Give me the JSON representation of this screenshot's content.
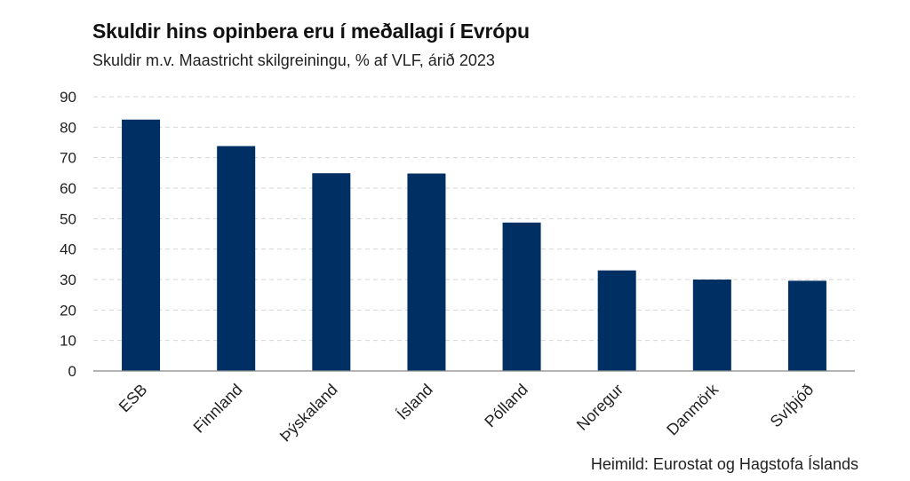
{
  "header": {
    "title": "Skuldir hins opinbera eru í meðallagi í Evrópu",
    "subtitle": "Skuldir m.v. Maastricht skilgreiningu, % af VLF, árið 2023"
  },
  "footer": {
    "source": "Heimild: Eurostat og Hagstofa Íslands"
  },
  "colors": {
    "bar": "#003063",
    "grid": "#d6d6d6",
    "axis": "#888888",
    "text": "#222222"
  },
  "chart_data": {
    "type": "bar",
    "categories": [
      "ESB",
      "Finnland",
      "Þýskaland",
      "Ísland",
      "Pólland",
      "Noregur",
      "Danmörk",
      "Svíþjóð"
    ],
    "values": [
      82.5,
      73.8,
      64.9,
      64.8,
      48.7,
      33.0,
      30.0,
      29.6
    ],
    "ylim": [
      0,
      90
    ],
    "yticks": [
      "0",
      "10",
      "20",
      "30",
      "40",
      "50",
      "60",
      "70",
      "80",
      "90"
    ],
    "grid": true
  }
}
